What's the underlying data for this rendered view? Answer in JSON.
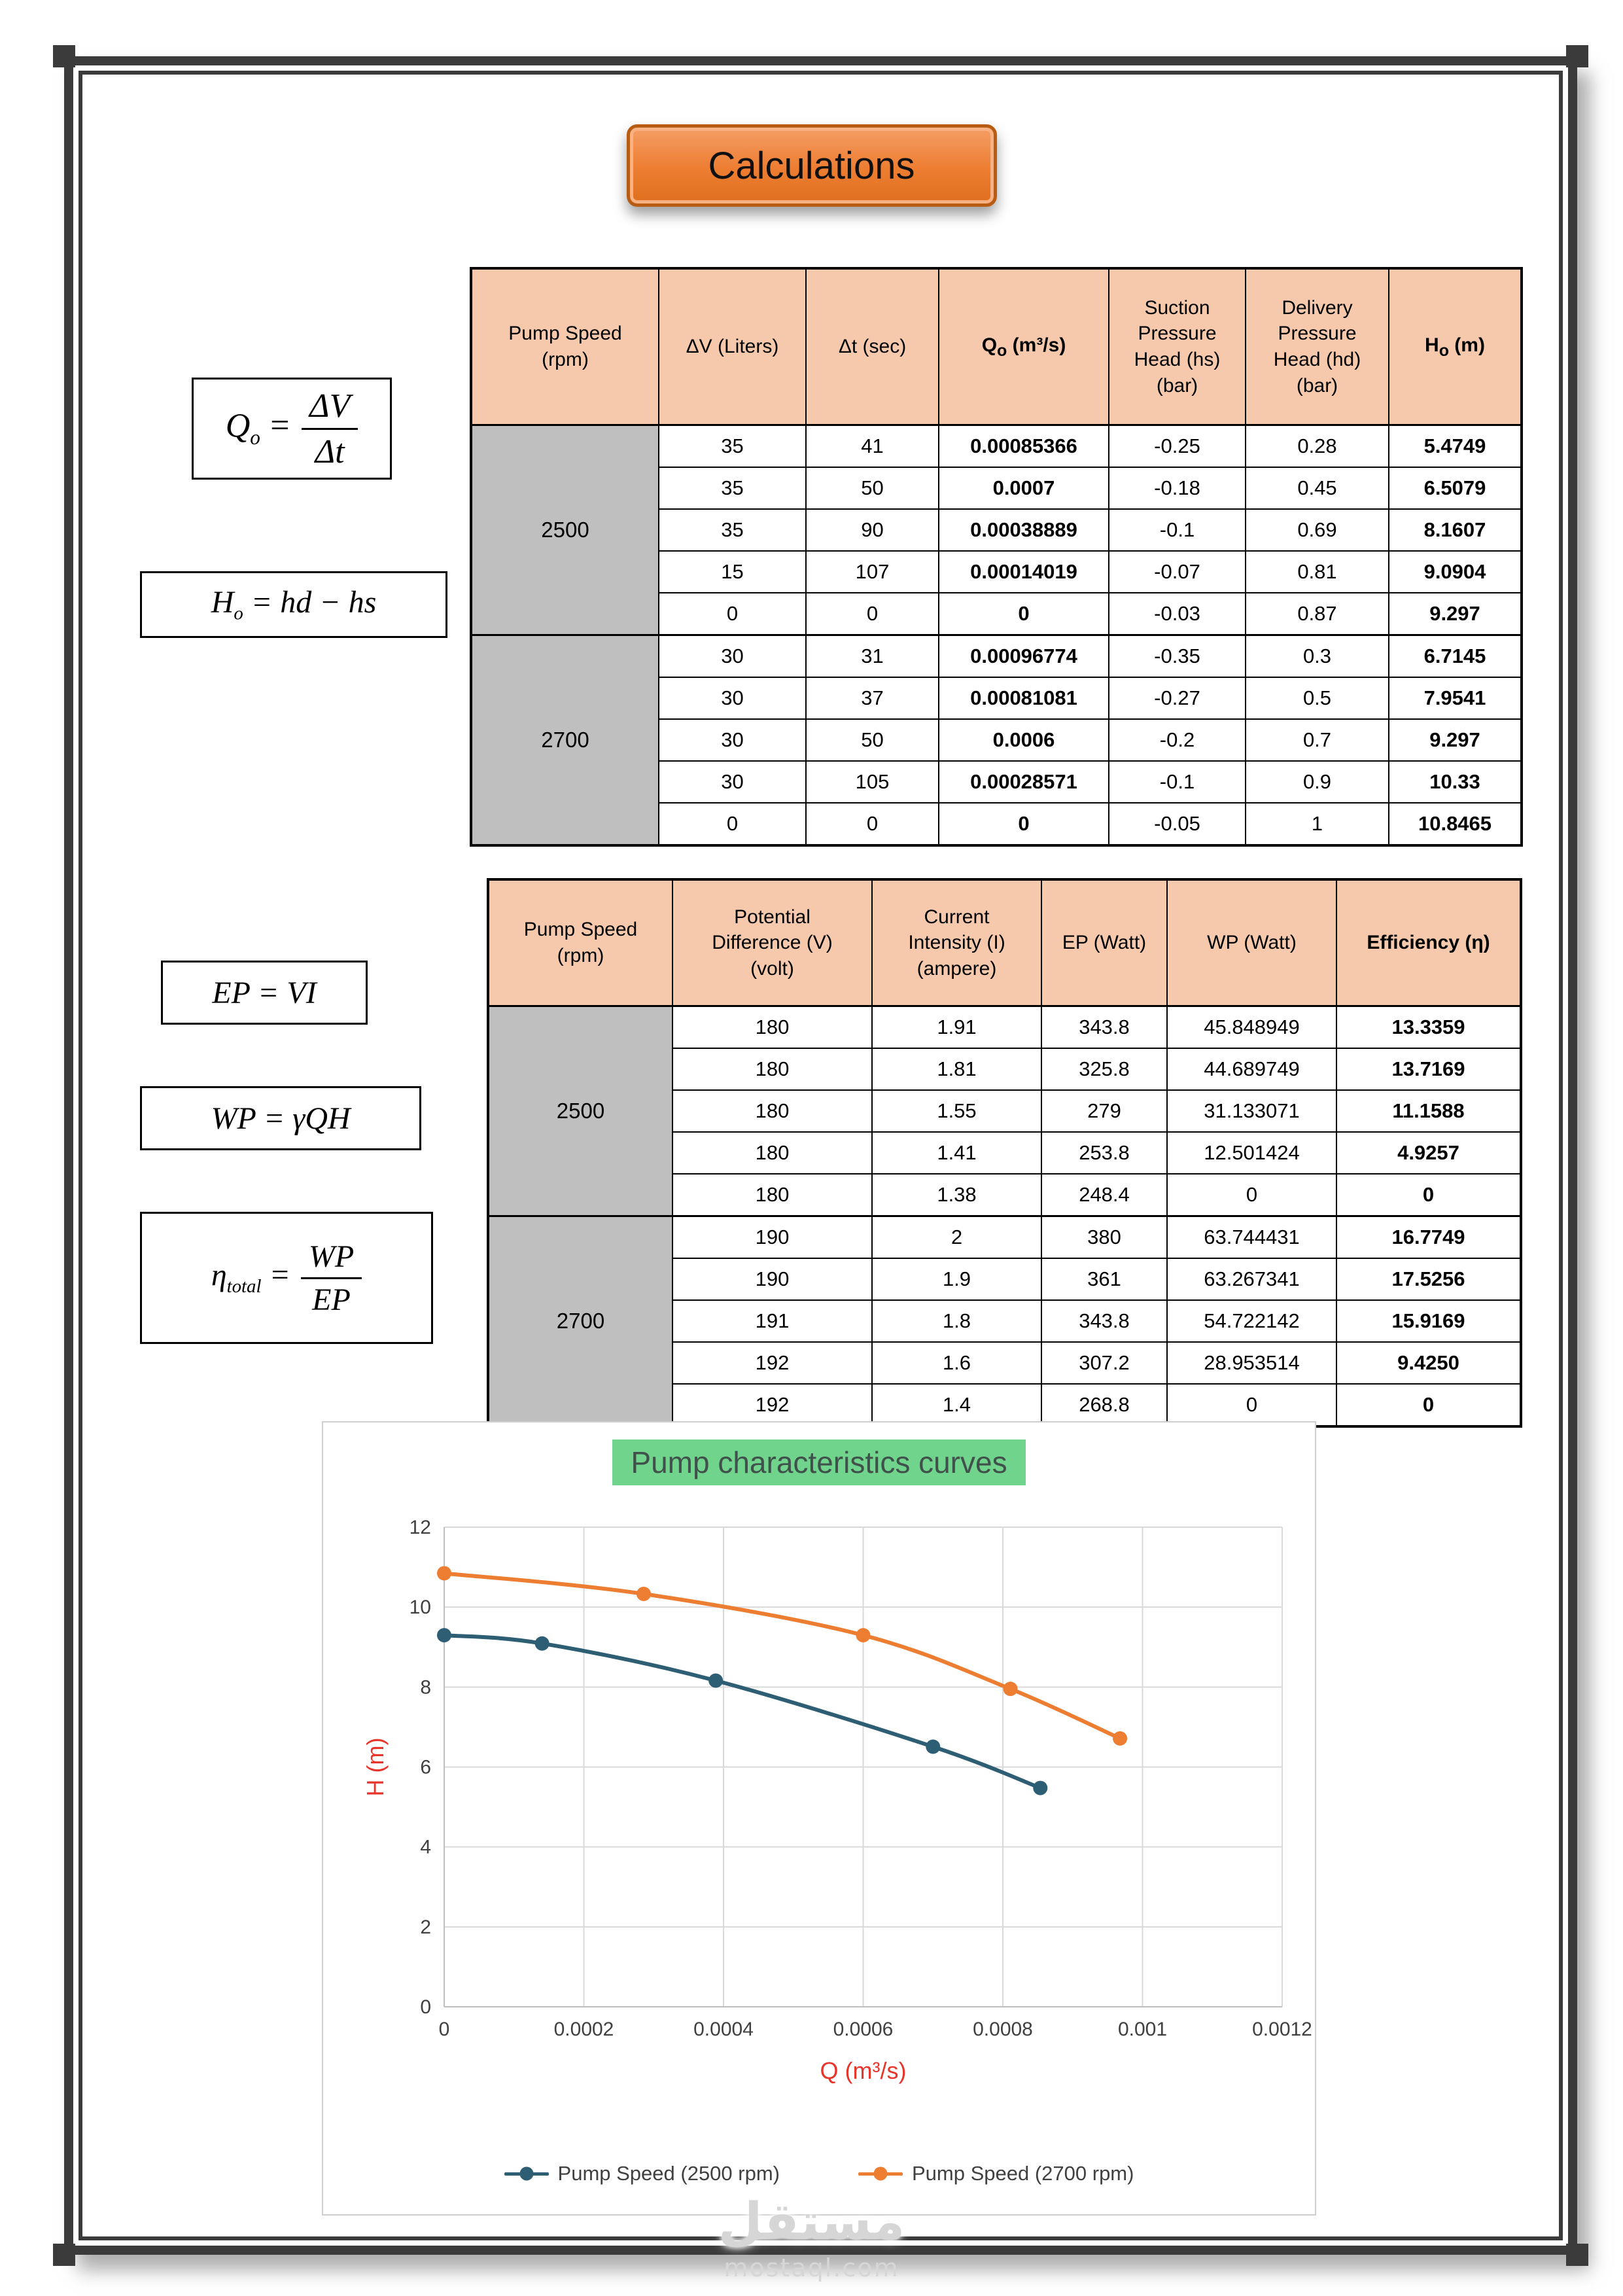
{
  "page": {
    "title_button": "Calculations",
    "watermark_ar": "مستقل",
    "watermark_en": "mostaql.com"
  },
  "formulas": {
    "qo": {
      "base": "Q",
      "sub": "o",
      "eq": "=",
      "num": "ΔV",
      "den": "Δt"
    },
    "ho": {
      "base": "H",
      "sub": "o",
      "rest": "= hd − hs"
    },
    "ep": {
      "text": "EP = VI"
    },
    "wp": {
      "text": "WP = γQH"
    },
    "eta": {
      "base": "η",
      "sub": "total",
      "eq": "=",
      "num": "WP",
      "den": "EP"
    }
  },
  "table1": {
    "headers": [
      "Pump Speed\n(rpm)",
      "ΔV (Liters)",
      "Δt (sec)",
      "Q_{o} (m³/s)",
      "Suction\nPressure\nHead (hs)\n(bar)",
      "Delivery\nPressure\nHead (hd)\n(bar)",
      "H_{o} (m)"
    ],
    "groups": [
      {
        "speed": "2500",
        "rows": [
          [
            "35",
            "41",
            "0.00085366",
            "-0.25",
            "0.28",
            "5.4749"
          ],
          [
            "35",
            "50",
            "0.0007",
            "-0.18",
            "0.45",
            "6.5079"
          ],
          [
            "35",
            "90",
            "0.00038889",
            "-0.1",
            "0.69",
            "8.1607"
          ],
          [
            "15",
            "107",
            "0.00014019",
            "-0.07",
            "0.81",
            "9.0904"
          ],
          [
            "0",
            "0",
            "0",
            "-0.03",
            "0.87",
            "9.297"
          ]
        ]
      },
      {
        "speed": "2700",
        "rows": [
          [
            "30",
            "31",
            "0.00096774",
            "-0.35",
            "0.3",
            "6.7145"
          ],
          [
            "30",
            "37",
            "0.00081081",
            "-0.27",
            "0.5",
            "7.9541"
          ],
          [
            "30",
            "50",
            "0.0006",
            "-0.2",
            "0.7",
            "9.297"
          ],
          [
            "30",
            "105",
            "0.00028571",
            "-0.1",
            "0.9",
            "10.33"
          ],
          [
            "0",
            "0",
            "0",
            "-0.05",
            "1",
            "10.8465"
          ]
        ]
      }
    ]
  },
  "table2": {
    "headers": [
      "Pump Speed\n(rpm)",
      "Potential\nDifference (V)\n(volt)",
      "Current\nIntensity (I)\n(ampere)",
      "EP (Watt)",
      "WP (Watt)",
      "Efficiency (η)"
    ],
    "groups": [
      {
        "speed": "2500",
        "rows": [
          [
            "180",
            "1.91",
            "343.8",
            "45.848949",
            "13.3359"
          ],
          [
            "180",
            "1.81",
            "325.8",
            "44.689749",
            "13.7169"
          ],
          [
            "180",
            "1.55",
            "279",
            "31.133071",
            "11.1588"
          ],
          [
            "180",
            "1.41",
            "253.8",
            "12.501424",
            "4.9257"
          ],
          [
            "180",
            "1.38",
            "248.4",
            "0",
            "0"
          ]
        ]
      },
      {
        "speed": "2700",
        "rows": [
          [
            "190",
            "2",
            "380",
            "63.744431",
            "16.7749"
          ],
          [
            "190",
            "1.9",
            "361",
            "63.267341",
            "17.5256"
          ],
          [
            "191",
            "1.8",
            "343.8",
            "54.722142",
            "15.9169"
          ],
          [
            "192",
            "1.6",
            "307.2",
            "28.953514",
            "9.4250"
          ],
          [
            "192",
            "1.4",
            "268.8",
            "0",
            "0"
          ]
        ]
      }
    ]
  },
  "chart_data": {
    "type": "line",
    "title": "Pump characteristics curves",
    "xlabel": "Q (m³/s)",
    "ylabel": "H (m)",
    "xlim": [
      0,
      0.0012
    ],
    "ylim": [
      0,
      12
    ],
    "x_ticks": [
      0,
      0.0002,
      0.0004,
      0.0006,
      0.0008,
      0.001,
      0.0012
    ],
    "x_tick_labels": [
      "0",
      "0.0002",
      "0.0004",
      "0.0006",
      "0.0008",
      "0.001",
      "0.0012"
    ],
    "y_ticks": [
      0,
      2,
      4,
      6,
      8,
      10,
      12
    ],
    "y_tick_labels": [
      "0",
      "2",
      "4",
      "6",
      "8",
      "10",
      "12"
    ],
    "grid": true,
    "legend_position": "bottom",
    "colors": {
      "grid": "#d9d9d9",
      "axis": "#bfbfbf",
      "axis_title": "#e8352c",
      "title_highlight": "#71d48c"
    },
    "series": [
      {
        "name": "Pump Speed (2500 rpm)",
        "color": "#2e5e74",
        "points": [
          [
            0,
            9.297
          ],
          [
            0.00014019,
            9.0904
          ],
          [
            0.00038889,
            8.1607
          ],
          [
            0.0007,
            6.5079
          ],
          [
            0.00085366,
            5.4749
          ]
        ]
      },
      {
        "name": "Pump Speed (2700 rpm)",
        "color": "#ed7d31",
        "points": [
          [
            0,
            10.8465
          ],
          [
            0.00028571,
            10.33
          ],
          [
            0.0006,
            9.297
          ],
          [
            0.00081081,
            7.9541
          ],
          [
            0.00096774,
            6.7145
          ]
        ]
      }
    ]
  },
  "ui_colors": {
    "table_header_fill": "#f6c9ac",
    "group_cell_fill": "#bfbfbf",
    "banner_fill": "#ed7d31"
  }
}
